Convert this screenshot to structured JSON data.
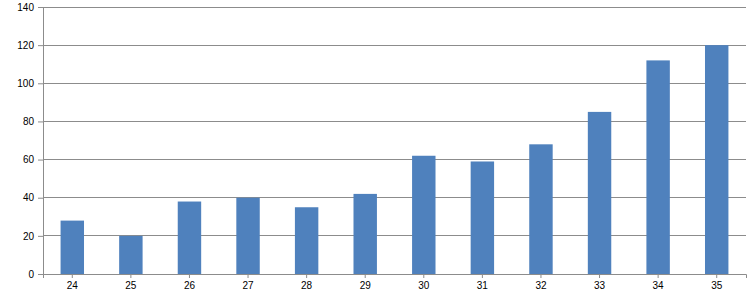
{
  "chart_data": {
    "type": "bar",
    "categories": [
      "24",
      "25",
      "26",
      "27",
      "28",
      "29",
      "30",
      "31",
      "32",
      "33",
      "34",
      "35"
    ],
    "values": [
      28,
      20,
      38,
      40,
      35,
      42,
      62,
      59,
      68,
      85,
      112,
      120
    ],
    "color": "#4f81bd",
    "ylim": [
      0,
      140
    ],
    "yticks": [
      0,
      20,
      40,
      60,
      80,
      100,
      120,
      140
    ],
    "grid": true
  }
}
